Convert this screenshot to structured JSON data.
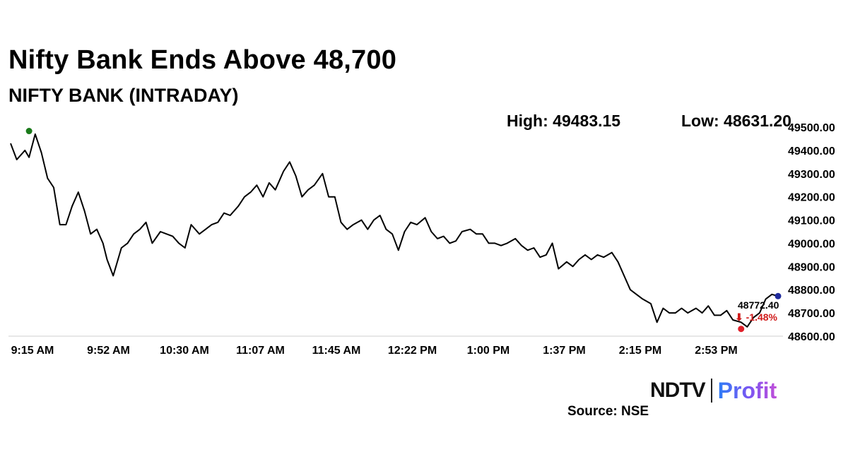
{
  "headline": "Nifty Bank Ends Above 48,700",
  "subtitle": "NIFTY BANK (INTRADAY)",
  "stats": {
    "high": "High: 49483.15",
    "low": "Low: 48631.20"
  },
  "brand": {
    "ndtv": "NDTV",
    "profit": "Profit"
  },
  "source": "Source: NSE",
  "colors": {
    "line": "#000000",
    "high_marker": "#1a7a1a",
    "low_marker": "#e0202a",
    "last_marker": "#1f2a9c",
    "change": "#d01b1b",
    "brand_accent": "#6a5cff"
  },
  "chart_data": {
    "type": "line",
    "title": "NIFTY BANK (INTRADAY)",
    "xlabel": "",
    "ylabel": "",
    "ylim": [
      48600,
      49500
    ],
    "grid": false,
    "y_axis_position": "right",
    "x_ticks": [
      "9:15 AM",
      "9:52 AM",
      "10:30 AM",
      "11:07 AM",
      "11:45 AM",
      "12:22 PM",
      "1:00 PM",
      "1:37 PM",
      "2:15 PM",
      "2:53 PM"
    ],
    "y_ticks": [
      "49500.00",
      "49400.00",
      "49300.00",
      "49200.00",
      "49100.00",
      "49000.00",
      "48900.00",
      "48800.00",
      "48700.00",
      "48600.00"
    ],
    "series": [
      {
        "x": [
          "9:15 AM",
          "9:18 AM",
          "9:22 AM",
          "9:24 AM",
          "9:27 AM",
          "9:30 AM",
          "9:33 AM",
          "9:36 AM",
          "9:39 AM",
          "9:42 AM",
          "9:45 AM",
          "9:48 AM",
          "9:51 AM",
          "9:54 AM",
          "9:57 AM",
          "10:00 AM",
          "10:02 AM",
          "10:05 AM",
          "10:09 AM",
          "10:12 AM",
          "10:15 AM",
          "10:18 AM",
          "10:21 AM",
          "10:24 AM",
          "10:28 AM",
          "10:31 AM",
          "10:34 AM",
          "10:37 AM",
          "10:40 AM",
          "10:43 AM",
          "10:47 AM",
          "10:50 AM",
          "10:53 AM",
          "10:56 AM",
          "10:59 AM",
          "11:02 AM",
          "11:06 AM",
          "11:09 AM",
          "11:12 AM",
          "11:15 AM",
          "11:18 AM",
          "11:21 AM",
          "11:24 AM",
          "11:28 AM",
          "11:31 AM",
          "11:34 AM",
          "11:37 AM",
          "11:40 AM",
          "11:43 AM",
          "11:47 AM",
          "11:50 AM",
          "11:53 AM",
          "11:56 AM",
          "11:59 AM",
          "12:02 PM",
          "12:06 PM",
          "12:09 PM",
          "12:12 PM",
          "12:15 PM",
          "12:18 PM",
          "12:21 PM",
          "12:24 PM",
          "12:27 PM",
          "12:30 PM",
          "12:33 PM",
          "12:37 PM",
          "12:40 PM",
          "12:43 PM",
          "12:46 PM",
          "12:49 PM",
          "12:52 PM",
          "12:55 PM",
          "12:59 PM",
          "1:02 PM",
          "1:05 PM",
          "1:08 PM",
          "1:11 PM",
          "1:14 PM",
          "1:17 PM",
          "1:21 PM",
          "1:24 PM",
          "1:27 PM",
          "1:30 PM",
          "1:33 PM",
          "1:36 PM",
          "1:39 PM",
          "1:42 PM",
          "1:46 PM",
          "1:49 PM",
          "1:52 PM",
          "1:55 PM",
          "1:58 PM",
          "2:01 PM",
          "2:04 PM",
          "2:08 PM",
          "2:11 PM",
          "2:14 PM",
          "2:17 PM",
          "2:20 PM",
          "2:23 PM",
          "2:27 PM",
          "2:30 PM",
          "2:33 PM",
          "2:36 PM",
          "2:39 PM",
          "2:42 PM",
          "2:45 PM",
          "2:49 PM",
          "2:52 PM",
          "2:55 PM",
          "2:58 PM",
          "3:01 PM",
          "3:04 PM",
          "3:07 PM",
          "3:11 PM",
          "3:14 PM",
          "3:17 PM",
          "3:20 PM",
          "3:23 PM",
          "3:26 PM",
          "3:29 PM"
        ],
        "values": [
          49430,
          49360,
          49400,
          49370,
          49470,
          49390,
          49280,
          49240,
          49080,
          49080,
          49160,
          49220,
          49140,
          49040,
          49060,
          49000,
          48930,
          48860,
          48980,
          49000,
          49040,
          49060,
          49090,
          49000,
          49050,
          49040,
          49030,
          49000,
          48980,
          49080,
          49040,
          49060,
          49080,
          49090,
          49130,
          49120,
          49160,
          49200,
          49220,
          49250,
          49200,
          49260,
          49230,
          49310,
          49350,
          49290,
          49200,
          49230,
          49250,
          49300,
          49200,
          49200,
          49090,
          49060,
          49080,
          49100,
          49060,
          49100,
          49120,
          49060,
          49040,
          48970,
          49050,
          49090,
          49080,
          49110,
          49050,
          49020,
          49030,
          49000,
          49010,
          49050,
          49060,
          49040,
          49040,
          49000,
          49000,
          48990,
          49000,
          49020,
          48990,
          48970,
          48980,
          48940,
          48950,
          49000,
          48890,
          48920,
          48900,
          48930,
          48950,
          48930,
          48950,
          48940,
          48960,
          48920,
          48860,
          48800,
          48780,
          48760,
          48740,
          48660,
          48720,
          48700,
          48700,
          48720,
          48700,
          48720,
          48700,
          48730,
          48690,
          48690,
          48710,
          48670,
          48660,
          48640,
          48680,
          48700,
          48760,
          48780,
          48772.4
        ]
      }
    ],
    "markers": [
      {
        "label": "high",
        "x": "9:24 AM",
        "y": 49483.15
      },
      {
        "label": "low",
        "x": "3:11 PM",
        "y": 48631.2
      },
      {
        "label": "close",
        "x": "3:29 PM",
        "y": 48772.4
      }
    ],
    "annotations": {
      "last_value": "48772.40",
      "change": "⬇ -1.48%"
    }
  }
}
